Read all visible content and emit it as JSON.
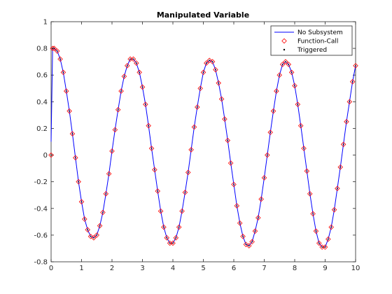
{
  "chart_data": {
    "type": "line",
    "title": "Manipulated Variable",
    "xlabel": "",
    "ylabel": "",
    "xlim": [
      0,
      10
    ],
    "ylim": [
      -0.8,
      1
    ],
    "xticks": [
      "0",
      "1",
      "2",
      "3",
      "4",
      "5",
      "6",
      "7",
      "8",
      "9",
      "10"
    ],
    "yticks": [
      "-0.8",
      "-0.6",
      "-0.4",
      "-0.2",
      "0",
      "0.2",
      "0.4",
      "0.6",
      "0.8",
      "1"
    ],
    "grid": false,
    "legend_position": "top-right",
    "series": [
      {
        "name": "No Subsystem",
        "style": "line",
        "color": "#0000ff",
        "x": [
          0,
          0.05,
          0.1,
          0.2,
          0.3,
          0.4,
          0.5,
          0.6,
          0.7,
          0.8,
          0.9,
          1.0,
          1.1,
          1.2,
          1.3,
          1.4,
          1.5,
          1.6,
          1.7,
          1.8,
          1.9,
          2.0,
          2.1,
          2.2,
          2.3,
          2.4,
          2.5,
          2.6,
          2.7,
          2.8,
          2.9,
          3.0,
          3.1,
          3.2,
          3.3,
          3.4,
          3.5,
          3.6,
          3.7,
          3.8,
          3.9,
          4.0,
          4.1,
          4.2,
          4.3,
          4.4,
          4.5,
          4.6,
          4.7,
          4.8,
          4.9,
          5.0,
          5.1,
          5.2,
          5.3,
          5.4,
          5.5,
          5.6,
          5.7,
          5.8,
          5.9,
          6.0,
          6.1,
          6.2,
          6.3,
          6.4,
          6.5,
          6.6,
          6.7,
          6.8,
          6.9,
          7.0,
          7.1,
          7.2,
          7.3,
          7.4,
          7.5,
          7.6,
          7.7,
          7.8,
          7.9,
          8.0,
          8.1,
          8.2,
          8.3,
          8.4,
          8.5,
          8.6,
          8.7,
          8.8,
          8.9,
          9.0,
          9.1,
          9.2,
          9.3,
          9.4,
          9.5,
          9.6,
          9.7,
          9.8,
          9.9,
          10.0
        ],
        "y": [
          0.1,
          0.8,
          0.8,
          0.78,
          0.72,
          0.62,
          0.48,
          0.33,
          0.16,
          -0.02,
          -0.2,
          -0.35,
          -0.48,
          -0.56,
          -0.61,
          -0.62,
          -0.6,
          -0.53,
          -0.43,
          -0.29,
          -0.14,
          0.03,
          0.19,
          0.34,
          0.48,
          0.59,
          0.67,
          0.72,
          0.72,
          0.69,
          0.62,
          0.51,
          0.38,
          0.22,
          0.05,
          -0.11,
          -0.27,
          -0.42,
          -0.54,
          -0.62,
          -0.66,
          -0.66,
          -0.62,
          -0.54,
          -0.42,
          -0.28,
          -0.13,
          0.04,
          0.21,
          0.36,
          0.5,
          0.62,
          0.69,
          0.71,
          0.7,
          0.64,
          0.54,
          0.42,
          0.27,
          0.11,
          -0.06,
          -0.22,
          -0.38,
          -0.51,
          -0.61,
          -0.67,
          -0.68,
          -0.65,
          -0.57,
          -0.47,
          -0.33,
          -0.17,
          0.0,
          0.17,
          0.33,
          0.48,
          0.6,
          0.68,
          0.7,
          0.68,
          0.62,
          0.52,
          0.38,
          0.22,
          0.05,
          -0.12,
          -0.29,
          -0.44,
          -0.57,
          -0.66,
          -0.69,
          -0.69,
          -0.63,
          -0.54,
          -0.41,
          -0.25,
          -0.09,
          0.08,
          0.25,
          0.4,
          0.55,
          0.67
        ]
      },
      {
        "name": "Function-Call",
        "style": "marker",
        "marker": "diamond",
        "color": "#ff0000",
        "x": [
          0,
          0.05,
          0.1,
          0.2,
          0.3,
          0.4,
          0.5,
          0.6,
          0.7,
          0.8,
          0.9,
          1.0,
          1.1,
          1.2,
          1.3,
          1.4,
          1.5,
          1.6,
          1.7,
          1.8,
          1.9,
          2.0,
          2.1,
          2.2,
          2.3,
          2.4,
          2.5,
          2.6,
          2.7,
          2.8,
          2.9,
          3.0,
          3.1,
          3.2,
          3.3,
          3.4,
          3.5,
          3.6,
          3.7,
          3.8,
          3.9,
          4.0,
          4.1,
          4.2,
          4.3,
          4.4,
          4.5,
          4.6,
          4.7,
          4.8,
          4.9,
          5.0,
          5.1,
          5.2,
          5.3,
          5.4,
          5.5,
          5.6,
          5.7,
          5.8,
          5.9,
          6.0,
          6.1,
          6.2,
          6.3,
          6.4,
          6.5,
          6.6,
          6.7,
          6.8,
          6.9,
          7.0,
          7.1,
          7.2,
          7.3,
          7.4,
          7.5,
          7.6,
          7.7,
          7.8,
          7.9,
          8.0,
          8.1,
          8.2,
          8.3,
          8.4,
          8.5,
          8.6,
          8.7,
          8.8,
          8.9,
          9.0,
          9.1,
          9.2,
          9.3,
          9.4,
          9.5,
          9.6,
          9.7,
          9.8,
          9.9,
          10.0
        ],
        "y": [
          0.0,
          0.8,
          0.8,
          0.78,
          0.72,
          0.62,
          0.48,
          0.33,
          0.16,
          -0.02,
          -0.2,
          -0.35,
          -0.48,
          -0.56,
          -0.61,
          -0.62,
          -0.6,
          -0.53,
          -0.43,
          -0.29,
          -0.14,
          0.03,
          0.19,
          0.34,
          0.48,
          0.59,
          0.67,
          0.72,
          0.72,
          0.69,
          0.62,
          0.51,
          0.38,
          0.22,
          0.05,
          -0.11,
          -0.27,
          -0.42,
          -0.54,
          -0.62,
          -0.66,
          -0.66,
          -0.62,
          -0.54,
          -0.42,
          -0.28,
          -0.13,
          0.04,
          0.21,
          0.36,
          0.5,
          0.62,
          0.69,
          0.71,
          0.7,
          0.64,
          0.54,
          0.42,
          0.27,
          0.11,
          -0.06,
          -0.22,
          -0.38,
          -0.51,
          -0.61,
          -0.67,
          -0.68,
          -0.65,
          -0.57,
          -0.47,
          -0.33,
          -0.17,
          0.0,
          0.17,
          0.33,
          0.48,
          0.6,
          0.68,
          0.7,
          0.68,
          0.62,
          0.52,
          0.38,
          0.22,
          0.05,
          -0.12,
          -0.29,
          -0.44,
          -0.57,
          -0.66,
          -0.69,
          -0.69,
          -0.63,
          -0.54,
          -0.41,
          -0.25,
          -0.09,
          0.08,
          0.25,
          0.4,
          0.55,
          0.67
        ]
      },
      {
        "name": "Triggered",
        "style": "marker",
        "marker": "dot",
        "color": "#000000",
        "x": [
          0,
          0.05,
          0.1,
          0.2,
          0.3,
          0.4,
          0.5,
          0.6,
          0.7,
          0.8,
          0.9,
          1.0,
          1.1,
          1.2,
          1.3,
          1.4,
          1.5,
          1.6,
          1.7,
          1.8,
          1.9,
          2.0,
          2.1,
          2.2,
          2.3,
          2.4,
          2.5,
          2.6,
          2.7,
          2.8,
          2.9,
          3.0,
          3.1,
          3.2,
          3.3,
          3.4,
          3.5,
          3.6,
          3.7,
          3.8,
          3.9,
          4.0,
          4.1,
          4.2,
          4.3,
          4.4,
          4.5,
          4.6,
          4.7,
          4.8,
          4.9,
          5.0,
          5.1,
          5.2,
          5.3,
          5.4,
          5.5,
          5.6,
          5.7,
          5.8,
          5.9,
          6.0,
          6.1,
          6.2,
          6.3,
          6.4,
          6.5,
          6.6,
          6.7,
          6.8,
          6.9,
          7.0,
          7.1,
          7.2,
          7.3,
          7.4,
          7.5,
          7.6,
          7.7,
          7.8,
          7.9,
          8.0,
          8.1,
          8.2,
          8.3,
          8.4,
          8.5,
          8.6,
          8.7,
          8.8,
          8.9,
          9.0,
          9.1,
          9.2,
          9.3,
          9.4,
          9.5,
          9.6,
          9.7,
          9.8,
          9.9,
          10.0
        ],
        "y": [
          0.0,
          0.8,
          0.8,
          0.78,
          0.72,
          0.62,
          0.48,
          0.33,
          0.16,
          -0.02,
          -0.2,
          -0.35,
          -0.48,
          -0.56,
          -0.61,
          -0.62,
          -0.6,
          -0.53,
          -0.43,
          -0.29,
          -0.14,
          0.03,
          0.19,
          0.34,
          0.48,
          0.59,
          0.67,
          0.72,
          0.72,
          0.69,
          0.62,
          0.51,
          0.38,
          0.22,
          0.05,
          -0.11,
          -0.27,
          -0.42,
          -0.54,
          -0.62,
          -0.66,
          -0.66,
          -0.62,
          -0.54,
          -0.42,
          -0.28,
          -0.13,
          0.04,
          0.21,
          0.36,
          0.5,
          0.62,
          0.69,
          0.71,
          0.7,
          0.64,
          0.54,
          0.42,
          0.27,
          0.11,
          -0.06,
          -0.22,
          -0.38,
          -0.51,
          -0.61,
          -0.67,
          -0.68,
          -0.65,
          -0.57,
          -0.47,
          -0.33,
          -0.17,
          0.0,
          0.17,
          0.33,
          0.48,
          0.6,
          0.68,
          0.7,
          0.68,
          0.62,
          0.52,
          0.38,
          0.22,
          0.05,
          -0.12,
          -0.29,
          -0.44,
          -0.57,
          -0.66,
          -0.69,
          -0.69,
          -0.63,
          -0.54,
          -0.41,
          -0.25,
          -0.09,
          0.08,
          0.25,
          0.4,
          0.55,
          0.67
        ]
      }
    ]
  }
}
